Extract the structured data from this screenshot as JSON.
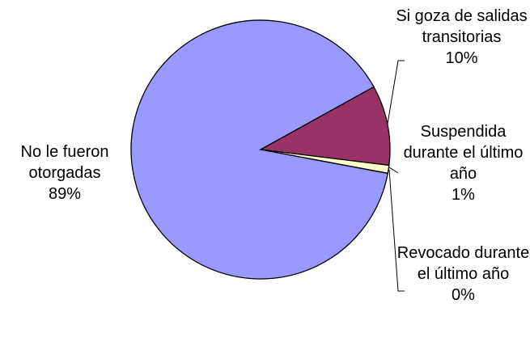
{
  "chart_data": {
    "type": "pie",
    "categories": [
      "Si goza de salidas transitorias",
      "Suspendida durante el último año",
      "Revocado durante el último año",
      "No le fueron otorgadas"
    ],
    "values": [
      10,
      1,
      0,
      89
    ],
    "value_labels": [
      "10%",
      "1%",
      "0%",
      "89%"
    ],
    "colors": [
      "#993366",
      "#ffffcc",
      "#ccffff",
      "#9999ff"
    ]
  }
}
